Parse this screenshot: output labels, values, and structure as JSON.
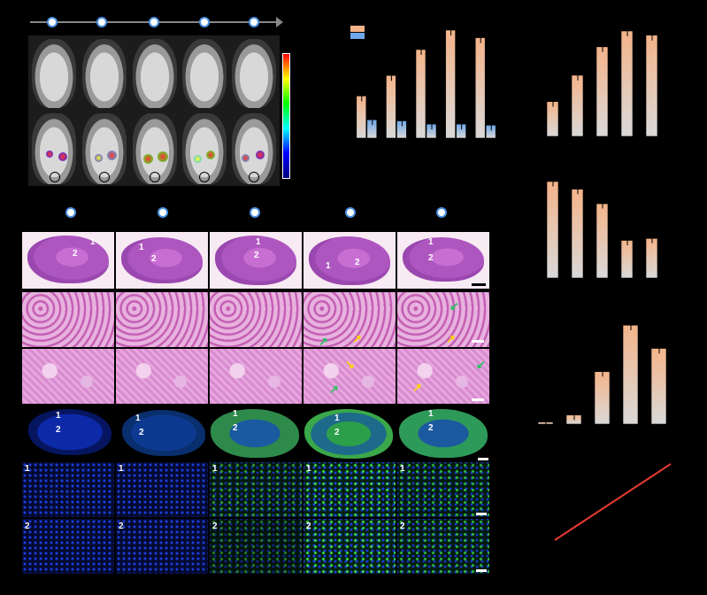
{
  "section_labels": {
    "he_tiles": [
      "1",
      "2",
      "1",
      "2",
      "1",
      "2",
      "1",
      "2",
      "1",
      "2"
    ],
    "if_tiles": [
      "1",
      "2",
      "1",
      "2",
      "1",
      "2",
      "1",
      "2",
      "1",
      "2"
    ],
    "if_rows": [
      "1",
      "2",
      "1",
      "2",
      "1",
      "2",
      "1",
      "2",
      "1",
      "2"
    ]
  },
  "chart_data": [
    {
      "type": "bar",
      "series": [
        {
          "values": [
            0.39,
            0.58,
            0.82,
            1.0,
            0.93
          ]
        },
        {
          "values": [
            0.17,
            0.16,
            0.13,
            0.13,
            0.12
          ]
        }
      ],
      "categories": [
        "",
        "",
        "",
        "",
        ""
      ],
      "legend": "top-left"
    },
    {
      "type": "bar",
      "series": [
        {
          "values": [
            0.33,
            0.58,
            0.85,
            1.0,
            0.96
          ]
        }
      ],
      "categories": [
        "",
        "",
        "",
        "",
        ""
      ]
    },
    {
      "type": "bar",
      "series": [
        {
          "values": [
            1.0,
            0.92,
            0.77,
            0.39,
            0.41
          ]
        }
      ],
      "categories": [
        "",
        "",
        "",
        "",
        ""
      ]
    },
    {
      "type": "bar",
      "series": [
        {
          "values": [
            0.02,
            0.09,
            0.52,
            0.98,
            0.75
          ]
        }
      ],
      "categories": [
        "",
        "",
        "",
        "",
        ""
      ]
    },
    {
      "type": "line",
      "series": [
        {
          "values": [
            0.0,
            1.0
          ]
        }
      ],
      "x": [
        0,
        1
      ],
      "color": "#e53935"
    }
  ],
  "colors": {
    "bar_orange": "#f4b48a",
    "bar_blue": "#6fa8e8",
    "line_red": "#e53935"
  }
}
